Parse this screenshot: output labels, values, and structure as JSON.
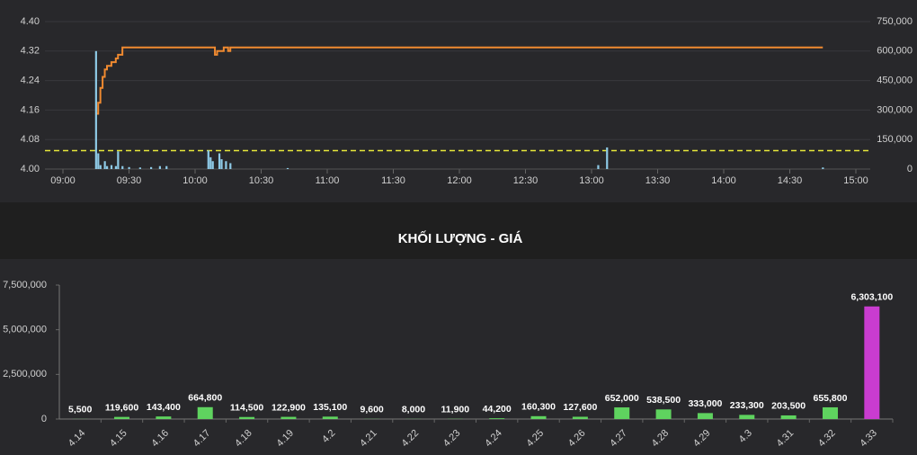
{
  "chart_data": [
    {
      "type": "line",
      "xlim": [
        "09:00",
        "15:00"
      ],
      "xticks": [
        "09:00",
        "09:30",
        "10:00",
        "10:30",
        "11:00",
        "11:30",
        "12:00",
        "12:30",
        "13:00",
        "13:30",
        "14:00",
        "14:30",
        "15:00"
      ],
      "ylim": [
        4.0,
        4.4
      ],
      "yticks": [
        {
          "value": 4.0,
          "label": "4.00"
        },
        4.08,
        4.16,
        4.24,
        4.32,
        {
          "value": 4.4,
          "label": "4.40"
        }
      ],
      "y2lim": [
        0,
        750000
      ],
      "y2ticks": [
        0,
        {
          "value": 150000,
          "label": "150,000"
        },
        {
          "value": 300000,
          "label": "300,000"
        },
        {
          "value": 450000,
          "label": "450,000"
        },
        {
          "value": 600000,
          "label": "600,000"
        },
        {
          "value": 750000,
          "label": "750,000"
        }
      ],
      "reference": 4.05,
      "reference_color": "#e8e83a",
      "grid": true,
      "series": [
        {
          "kind": "line",
          "color": "#f08a30",
          "x": [
            "09:15",
            "09:16",
            "09:17",
            "09:18",
            "09:19",
            "09:20",
            "09:22",
            "09:24",
            "09:25",
            "09:27",
            "10:08",
            "10:09",
            "10:10",
            "10:12",
            "10:13",
            "10:15",
            "10:16",
            "14:45"
          ],
          "values": [
            4.15,
            4.18,
            4.22,
            4.25,
            4.27,
            4.28,
            4.29,
            4.3,
            4.31,
            4.33,
            4.33,
            4.31,
            4.32,
            4.32,
            4.33,
            4.32,
            4.33,
            4.33
          ]
        },
        {
          "kind": "bar",
          "axis": "y2",
          "color": "#8ecae6",
          "x": [
            "09:15",
            "09:16",
            "09:17",
            "09:19",
            "09:20",
            "09:22",
            "09:24",
            "09:25",
            "09:27",
            "09:30",
            "09:35",
            "09:40",
            "09:44",
            "09:47",
            "10:06",
            "10:07",
            "10:08",
            "10:11",
            "10:12",
            "10:14",
            "10:16",
            "10:42",
            "13:03",
            "13:07",
            "14:45"
          ],
          "values": [
            600000,
            80000,
            20000,
            40000,
            15000,
            20000,
            15000,
            90000,
            15000,
            10000,
            8000,
            10000,
            15000,
            15000,
            95000,
            60000,
            40000,
            80000,
            50000,
            40000,
            30000,
            5000,
            20000,
            110000,
            8000
          ]
        }
      ]
    },
    {
      "type": "bar",
      "title": "KHỐI LƯỢNG - GIÁ",
      "categories": [
        "4.14",
        "4.15",
        "4.16",
        "4.17",
        "4.18",
        "4.19",
        "4.2",
        "4.21",
        "4.22",
        "4.23",
        "4.24",
        "4.25",
        "4.26",
        "4.27",
        "4.28",
        "4.29",
        "4.3",
        "4.31",
        "4.32",
        "4.33"
      ],
      "values": [
        5500,
        119600,
        143400,
        664800,
        114500,
        122900,
        135100,
        9600,
        8000,
        11900,
        44200,
        160300,
        127600,
        652000,
        538500,
        333000,
        233300,
        203500,
        655800,
        6303100
      ],
      "value_labels": [
        "5,500",
        "119,600",
        "143,400",
        "664,800",
        "114,500",
        "122,900",
        "135,100",
        "9,600",
        "8,000",
        "11,900",
        "44,200",
        "160,300",
        "127,600",
        "652,000",
        "538,500",
        "333,000",
        "233,300",
        "203,500",
        "655,800",
        "6,303,100"
      ],
      "colors": [
        "#5fd35f",
        "#5fd35f",
        "#5fd35f",
        "#5fd35f",
        "#5fd35f",
        "#5fd35f",
        "#5fd35f",
        "#5fd35f",
        "#5fd35f",
        "#5fd35f",
        "#5fd35f",
        "#5fd35f",
        "#5fd35f",
        "#5fd35f",
        "#5fd35f",
        "#5fd35f",
        "#5fd35f",
        "#5fd35f",
        "#5fd35f",
        "#c93cd0"
      ],
      "ylim": [
        0,
        7500000
      ],
      "yticks": [
        0,
        {
          "value": 2500000,
          "label": "2,500,000"
        },
        {
          "value": 5000000,
          "label": "5,000,000"
        },
        {
          "value": 7500000,
          "label": "7,500,000"
        }
      ],
      "grid": false
    }
  ]
}
